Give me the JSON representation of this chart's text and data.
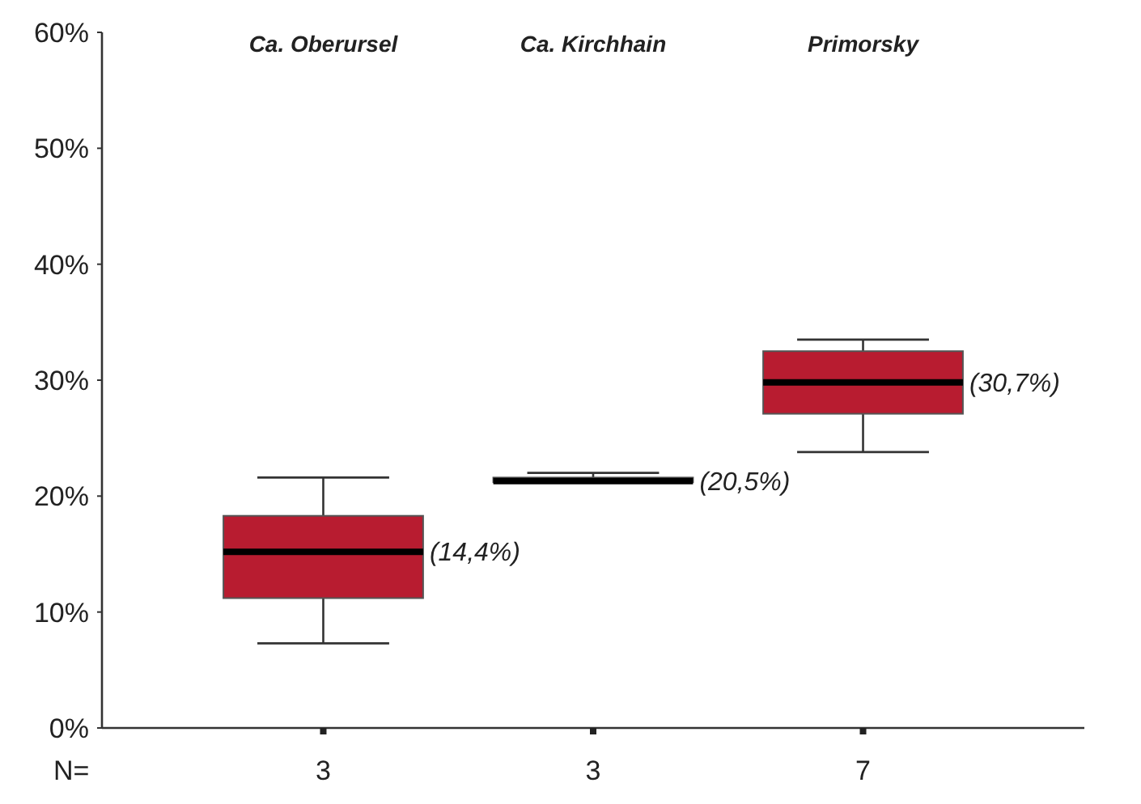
{
  "chart_data": {
    "type": "box",
    "categories": [
      "Ca. Oberursel",
      "Ca. Kirchhain",
      "Primorsky"
    ],
    "color": "#b81c30",
    "boxes": [
      {
        "low": 7.3,
        "q1": 11.2,
        "median": 15.2,
        "q3": 18.3,
        "high": 21.6
      },
      {
        "low": 21.2,
        "q1": 21.2,
        "median": 21.3,
        "q3": 21.6,
        "high": 22.0
      },
      {
        "low": 23.8,
        "q1": 27.1,
        "median": 29.8,
        "q3": 32.5,
        "high": 33.5
      }
    ],
    "ylim": [
      0,
      60
    ],
    "yticks": [
      {
        "value": 0,
        "label": "0%"
      },
      {
        "value": 10,
        "label": "10%"
      },
      {
        "value": 20,
        "label": "20%"
      },
      {
        "value": 30,
        "label": "30%"
      },
      {
        "value": 40,
        "label": "40%"
      },
      {
        "value": 50,
        "label": "50%"
      },
      {
        "value": 60,
        "label": "60%"
      }
    ],
    "annotations": [
      "(14,4%)",
      "(20,5%)",
      "(30,7%)",
      "N=",
      "3",
      "3",
      "7"
    ],
    "grid": false
  }
}
